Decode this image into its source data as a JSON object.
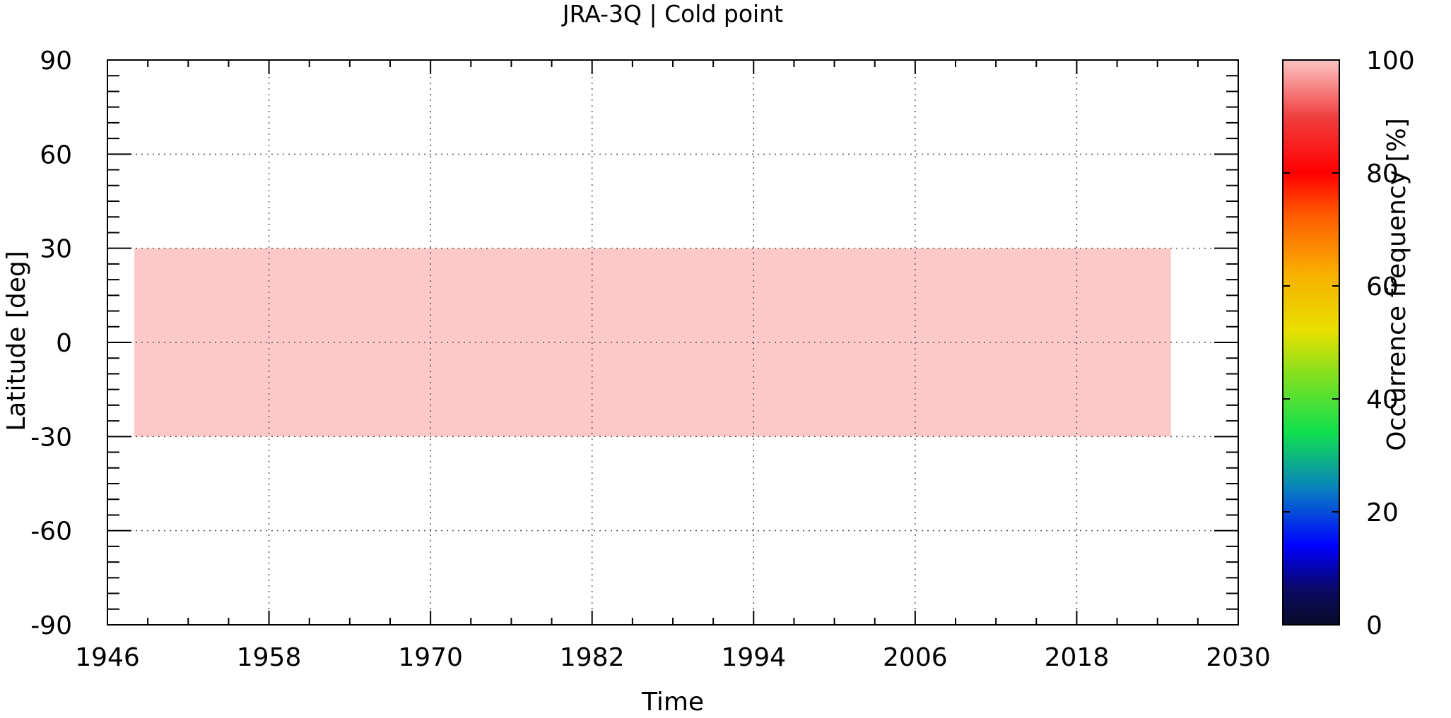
{
  "chart_data": {
    "type": "heatmap",
    "title": "JRA-3Q | Cold point",
    "xlabel": "Time",
    "ylabel": "Latitude [deg]",
    "colorbar_label": "Occurrence frequency [%]",
    "xlim": [
      1946,
      2030
    ],
    "ylim": [
      -90,
      90
    ],
    "x_ticks": [
      "1946",
      "1958",
      "1970",
      "1982",
      "1994",
      "2006",
      "2018",
      "2030"
    ],
    "y_ticks": [
      "90",
      "60",
      "30",
      "0",
      "-30",
      "-60",
      "-90"
    ],
    "colorbar_ticks": [
      "100",
      "80",
      "60",
      "40",
      "20",
      "0"
    ],
    "colorbar_range": [
      0,
      100
    ],
    "grid": true,
    "data_region": {
      "time_range": [
        1948,
        2025
      ],
      "lat_range": [
        -30,
        30
      ],
      "value": 100
    },
    "colors": {
      "heatmap_fill": "#fdc8c8",
      "colormap": [
        "#0a0a28",
        "#0010ff",
        "#0ae060",
        "#e8e000",
        "#ff0000",
        "#fcc0c0"
      ]
    }
  }
}
